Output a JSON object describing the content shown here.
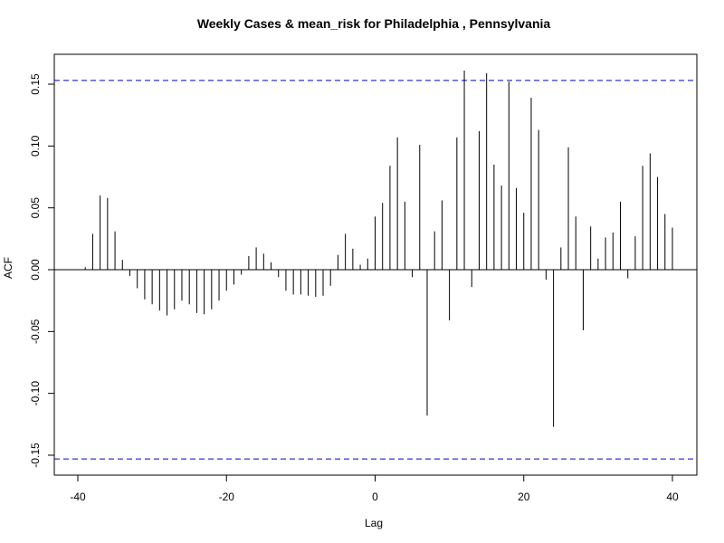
{
  "chart_data": {
    "type": "bar",
    "subtype": "acf-stem",
    "title": "Weekly Cases & mean_risk for Philadelphia , Pennsylvania",
    "xlabel": "Lag",
    "ylabel": "ACF",
    "xlim": [
      -40,
      40
    ],
    "ylim": [
      -0.16,
      0.175
    ],
    "x_ticks": [
      {
        "value": -40,
        "label": "-40"
      },
      {
        "value": -20,
        "label": "-20"
      },
      {
        "value": 0,
        "label": "0"
      },
      {
        "value": 20,
        "label": "20"
      },
      {
        "value": 40,
        "label": "40"
      }
    ],
    "y_ticks": [
      {
        "value": -0.15,
        "label": "-0.15"
      },
      {
        "value": -0.1,
        "label": "-0.10"
      },
      {
        "value": -0.05,
        "label": "-0.05"
      },
      {
        "value": 0.0,
        "label": "0.00"
      },
      {
        "value": 0.05,
        "label": "0.05"
      },
      {
        "value": 0.1,
        "label": "0.10"
      },
      {
        "value": 0.15,
        "label": "0.15"
      }
    ],
    "confidence_bounds": {
      "upper": 0.153,
      "lower": -0.153,
      "color": "#0000CD"
    },
    "zero_line": true,
    "grid": false,
    "lags": [
      -40,
      -39,
      -38,
      -37,
      -36,
      -35,
      -34,
      -33,
      -32,
      -31,
      -30,
      -29,
      -28,
      -27,
      -26,
      -25,
      -24,
      -23,
      -22,
      -21,
      -20,
      -19,
      -18,
      -17,
      -16,
      -15,
      -14,
      -13,
      -12,
      -11,
      -10,
      -9,
      -8,
      -7,
      -6,
      -5,
      -4,
      -3,
      -2,
      -1,
      0,
      1,
      2,
      3,
      4,
      5,
      6,
      7,
      8,
      9,
      10,
      11,
      12,
      13,
      14,
      15,
      16,
      17,
      18,
      19,
      20,
      21,
      22,
      23,
      24,
      25,
      26,
      27,
      28,
      29,
      30,
      31,
      32,
      33,
      34,
      35,
      36,
      37,
      38,
      39,
      40
    ],
    "values": [
      0.0,
      0.002,
      0.029,
      0.06,
      0.058,
      0.031,
      0.008,
      -0.005,
      -0.015,
      -0.024,
      -0.028,
      -0.033,
      -0.037,
      -0.032,
      -0.025,
      -0.028,
      -0.035,
      -0.036,
      -0.032,
      -0.025,
      -0.017,
      -0.012,
      -0.004,
      0.011,
      0.018,
      0.013,
      0.006,
      -0.006,
      -0.017,
      -0.02,
      -0.02,
      -0.021,
      -0.022,
      -0.021,
      -0.013,
      0.012,
      0.029,
      0.017,
      0.004,
      0.009,
      0.043,
      0.054,
      0.084,
      0.107,
      0.055,
      -0.006,
      0.101,
      -0.118,
      0.031,
      0.056,
      -0.041,
      0.107,
      0.161,
      -0.014,
      0.112,
      0.159,
      0.085,
      0.068,
      0.152,
      0.066,
      0.046,
      0.139,
      0.113,
      -0.008,
      -0.127,
      0.018,
      0.099,
      0.043,
      -0.049,
      0.035,
      0.009,
      0.026,
      0.03,
      0.055,
      -0.007,
      0.027,
      0.084,
      0.094,
      0.075,
      0.045,
      0.034
    ]
  }
}
